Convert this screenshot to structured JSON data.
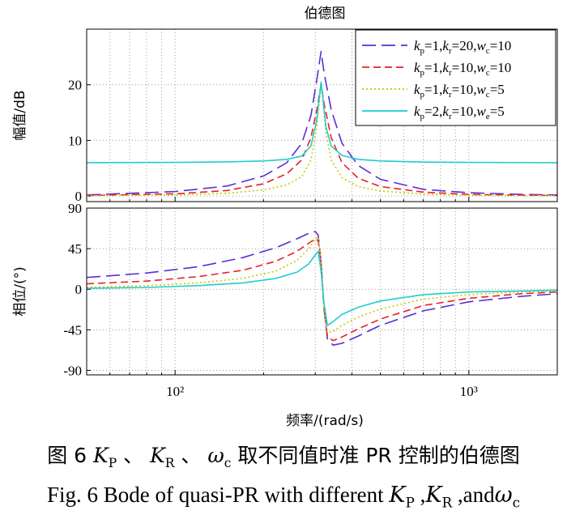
{
  "figure": {
    "title": "伯德图",
    "xlabel": "频率/(rad/s)",
    "legend_position": "top-right"
  },
  "caption": {
    "zh_prefix": "图 6",
    "zh_sep1": "、",
    "zh_sep2": "、",
    "zh_suffix": "取不同值时准 PR 控制的伯德图",
    "en_prefix": "Fig. 6 Bode of quasi-PR with different",
    "en_sep1": ",",
    "en_sep2": ",and",
    "sym_kp": "K",
    "sym_kp_sub": "P",
    "sym_kr": "K",
    "sym_kr_sub": "R",
    "sym_wc": "ω",
    "sym_wc_sub": "c"
  },
  "chart_data": [
    {
      "type": "line",
      "panel": "magnitude",
      "title": "伯德图",
      "ylabel": "幅值/dB",
      "xscale": "log",
      "xlim": [
        50,
        2000
      ],
      "ylim": [
        -1,
        30
      ],
      "yticks": [
        0,
        10,
        20
      ],
      "xtick_labels": [
        "10²",
        "10³"
      ],
      "grid": true,
      "legend": "top-right",
      "series": [
        {
          "name": "kp=1,kr=20,wc=10",
          "label_parts": [
            "k",
            "p",
            "=1,",
            "k",
            "r",
            "=20,",
            "w",
            "c",
            "=10"
          ],
          "color": "#5b2cd8",
          "dash": "long-dash",
          "x": [
            50,
            100,
            150,
            200,
            240,
            270,
            290,
            305,
            314,
            322,
            340,
            370,
            420,
            500,
            700,
            1000,
            1500,
            2000
          ],
          "y": [
            0.2,
            0.8,
            1.8,
            3.6,
            6.0,
            9.5,
            14.5,
            21.5,
            26.0,
            22.0,
            15.5,
            9.5,
            5.5,
            3.0,
            1.2,
            0.6,
            0.3,
            0.2
          ]
        },
        {
          "name": "kp=1,kr=10,wc=10",
          "label_parts": [
            "k",
            "p",
            "=1,",
            "k",
            "r",
            "=10,",
            "w",
            "c",
            "=10"
          ],
          "color": "#e8202a",
          "dash": "dash",
          "x": [
            50,
            100,
            150,
            200,
            240,
            270,
            290,
            305,
            314,
            322,
            340,
            370,
            420,
            500,
            700,
            1000,
            1500,
            2000
          ],
          "y": [
            0.1,
            0.4,
            1.0,
            2.2,
            4.0,
            6.5,
            10.5,
            16.0,
            20.0,
            16.5,
            10.5,
            6.0,
            3.2,
            1.7,
            0.7,
            0.3,
            0.15,
            0.1
          ]
        },
        {
          "name": "kp=1,kr=10,wc=5",
          "label_parts": [
            "k",
            "p",
            "=1,",
            "k",
            "r",
            "=10,",
            "w",
            "c",
            "=5"
          ],
          "color": "#c8c800",
          "dash": "dot",
          "x": [
            50,
            100,
            150,
            200,
            240,
            270,
            290,
            303,
            311,
            314,
            318,
            326,
            340,
            370,
            420,
            500,
            700,
            1000,
            2000
          ],
          "y": [
            0.05,
            0.2,
            0.5,
            1.1,
            2.0,
            3.5,
            6.5,
            12.0,
            18.0,
            20.0,
            17.5,
            11.5,
            6.5,
            3.3,
            1.7,
            0.9,
            0.35,
            0.15,
            0.05
          ]
        },
        {
          "name": "kp=2,kr=10,we=5",
          "label_parts": [
            "k",
            "p",
            "=2,",
            "k",
            "r",
            "=10,",
            "w",
            "e",
            "=5"
          ],
          "color": "#22cccc",
          "dash": "solid",
          "x": [
            50,
            100,
            150,
            200,
            240,
            270,
            290,
            303,
            311,
            314,
            318,
            326,
            340,
            370,
            420,
            500,
            700,
            1000,
            2000
          ],
          "y": [
            6.0,
            6.05,
            6.15,
            6.3,
            6.6,
            7.2,
            9.0,
            13.5,
            18.5,
            20.5,
            18.0,
            12.5,
            9.0,
            7.3,
            6.6,
            6.3,
            6.1,
            6.05,
            6.0
          ]
        }
      ]
    },
    {
      "type": "line",
      "panel": "phase",
      "ylabel": "相位/(°)",
      "xscale": "log",
      "xlim": [
        50,
        2000
      ],
      "ylim": [
        -95,
        90
      ],
      "yticks": [
        -90,
        -45,
        0,
        45,
        90
      ],
      "xtick_labels": [
        "10²",
        "10³"
      ],
      "grid": true,
      "series": [
        {
          "name": "kp=1,kr=20,wc=10",
          "color": "#5b2cd8",
          "dash": "long-dash",
          "x": [
            50,
            80,
            120,
            170,
            220,
            260,
            285,
            300,
            307,
            314,
            321,
            330,
            345,
            370,
            420,
            500,
            700,
            1000,
            1500,
            2000
          ],
          "y": [
            13,
            18,
            25,
            35,
            46,
            56,
            62,
            64,
            60,
            30,
            -20,
            -55,
            -62,
            -60,
            -52,
            -40,
            -24,
            -14,
            -8,
            -5
          ]
        },
        {
          "name": "kp=1,kr=10,wc=10",
          "color": "#e8202a",
          "dash": "dash",
          "x": [
            50,
            80,
            120,
            170,
            220,
            260,
            285,
            300,
            307,
            314,
            321,
            330,
            345,
            370,
            420,
            500,
            700,
            1000,
            1500,
            2000
          ],
          "y": [
            6,
            9,
            14,
            21,
            31,
            42,
            51,
            56,
            54,
            30,
            -20,
            -52,
            -57,
            -53,
            -44,
            -33,
            -18,
            -10,
            -5,
            -3
          ]
        },
        {
          "name": "kp=1,kr=10,wc=5",
          "color": "#c8c800",
          "dash": "dot",
          "x": [
            50,
            80,
            120,
            170,
            220,
            260,
            285,
            300,
            307,
            314,
            321,
            330,
            345,
            370,
            420,
            500,
            700,
            1000,
            1500,
            2000
          ],
          "y": [
            2,
            4,
            7,
            12,
            20,
            32,
            45,
            56,
            58,
            32,
            -25,
            -48,
            -47,
            -40,
            -31,
            -22,
            -11,
            -6,
            -3,
            -2
          ]
        },
        {
          "name": "kp=2,kr=10,we=5",
          "color": "#22cccc",
          "dash": "solid",
          "x": [
            50,
            80,
            120,
            170,
            220,
            260,
            285,
            300,
            307,
            314,
            321,
            330,
            345,
            370,
            420,
            500,
            700,
            1000,
            1500,
            2000
          ],
          "y": [
            1,
            2,
            4,
            7,
            12,
            19,
            28,
            38,
            42,
            20,
            -15,
            -40,
            -36,
            -28,
            -20,
            -13,
            -6,
            -3,
            -2,
            -1
          ]
        }
      ]
    }
  ]
}
